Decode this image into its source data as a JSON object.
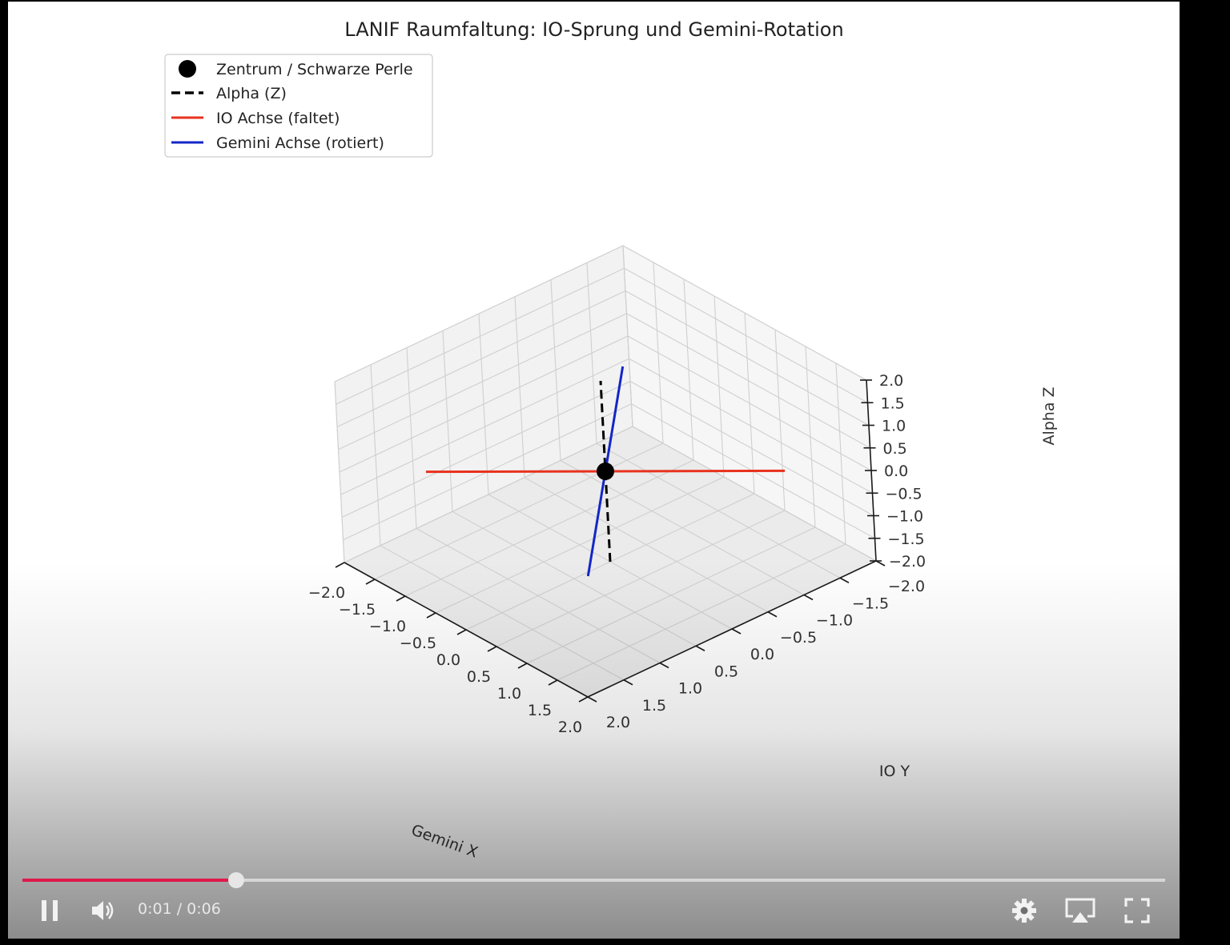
{
  "chart_data": {
    "type": "line3d",
    "title": "LANIF Raumfaltung: IO-Sprung und Gemini-Rotation",
    "xlabel": "Gemini X",
    "ylabel": "IO Y",
    "zlabel": "Alpha Z",
    "xlim": [
      -2,
      2
    ],
    "ylim": [
      -2,
      2
    ],
    "zlim": [
      -2,
      2
    ],
    "x_ticks": [
      "−2.0",
      "−1.5",
      "−1.0",
      "−0.5",
      "0.0",
      "0.5",
      "1.0",
      "1.5",
      "2.0"
    ],
    "y_ticks": [
      "−2.0",
      "−1.5",
      "−1.0",
      "−0.5",
      "0.0",
      "0.5",
      "1.0",
      "1.5",
      "2.0"
    ],
    "z_ticks": [
      "−2.0",
      "−1.5",
      "−1.0",
      "−0.5",
      "0.0",
      "0.5",
      "1.0",
      "1.5",
      "2.0"
    ],
    "grid": true,
    "legend_position": "top-left",
    "series": [
      {
        "name": "Zentrum / Schwarze Perle",
        "kind": "point",
        "color": "#000000",
        "points": [
          [
            0,
            0,
            0
          ]
        ]
      },
      {
        "name": "Alpha (Z)",
        "kind": "dashed-line",
        "color": "#000000",
        "points": [
          [
            0,
            0,
            -2
          ],
          [
            0,
            0,
            2
          ]
        ]
      },
      {
        "name": "IO Achse (faltet)",
        "kind": "line",
        "color": "#e8321e",
        "points": [
          [
            -1.35,
            1.35,
            0
          ],
          [
            1.35,
            -1.35,
            0
          ]
        ]
      },
      {
        "name": "Gemini Achse (rotiert)",
        "kind": "line",
        "color": "#1426c8",
        "points": [
          [
            -1.55,
            -1.55,
            0
          ],
          [
            1.55,
            1.55,
            0
          ]
        ]
      }
    ]
  },
  "player": {
    "time_current": "0:01",
    "time_total": "0:06",
    "time_text": "0:01 / 0:06",
    "progress_fraction": 0.1874,
    "accent_color": "#e0194a",
    "icons": {
      "pause": "pause-icon",
      "volume": "volume-icon",
      "settings": "gear-icon",
      "airplay": "airplay-icon",
      "fullscreen": "fullscreen-icon"
    }
  }
}
